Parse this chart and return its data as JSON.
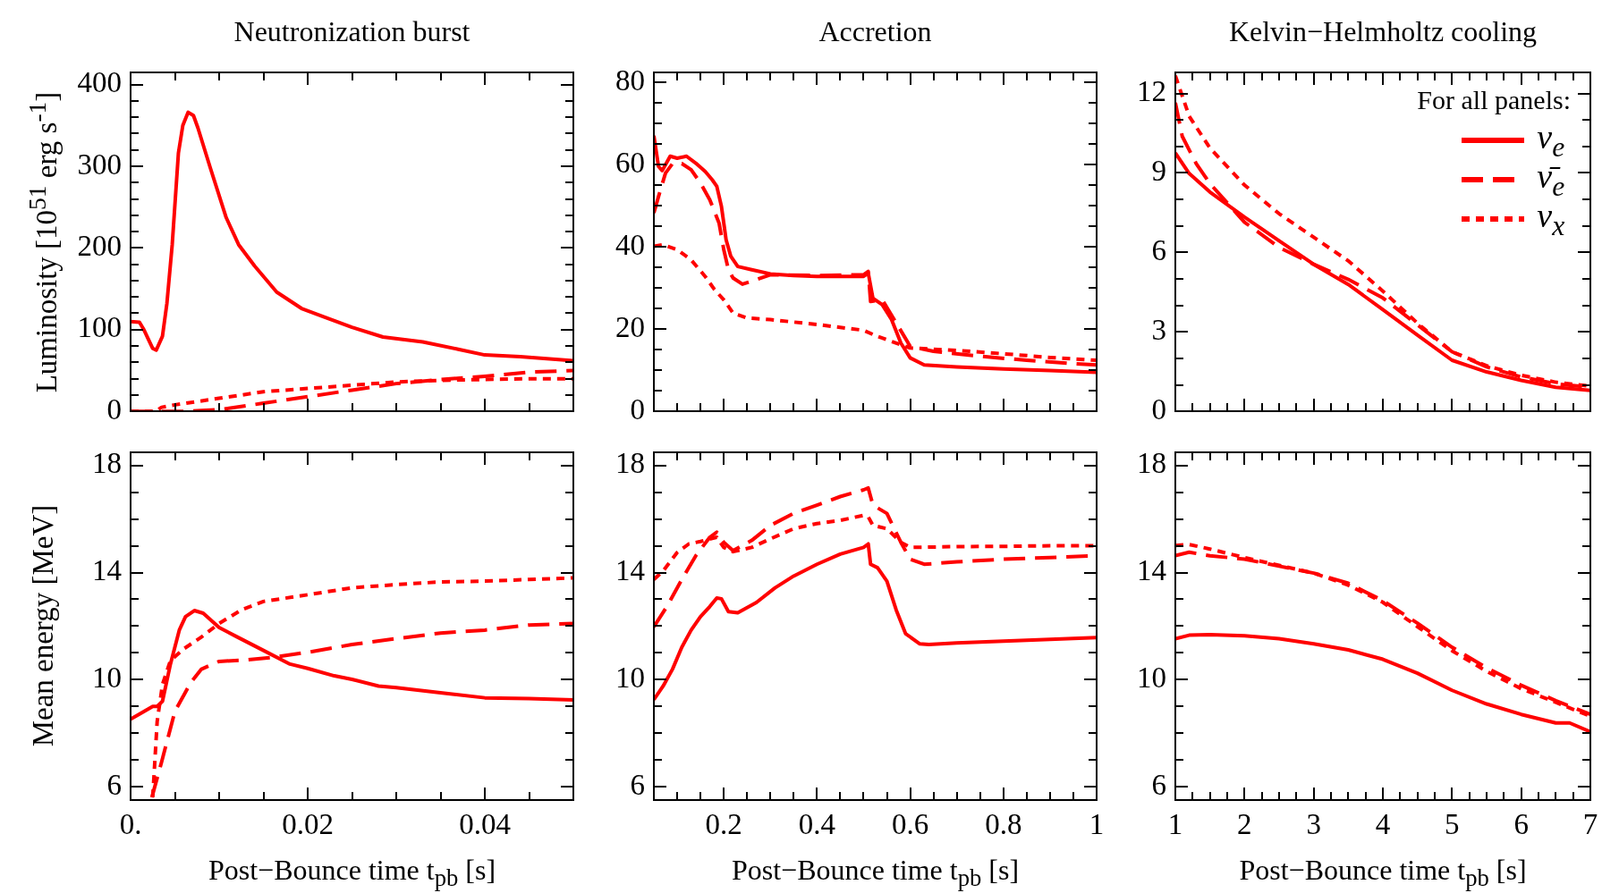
{
  "chart_data": [
    {
      "type": "line",
      "title": "Neutronization burst",
      "ylabel": "Luminosity [10$^{51}$ erg s$^{-1}$]",
      "tick_labels": "y",
      "xlim": [
        0,
        0.05
      ],
      "xticks": [
        0,
        {
          "value": 0.005,
          "label": null
        },
        {
          "value": 0.01,
          "label": null
        },
        {
          "value": 0.015,
          "label": null
        },
        0.02,
        {
          "value": 0.025,
          "label": null
        },
        {
          "value": 0.03,
          "label": null
        },
        {
          "value": 0.035,
          "label": null
        },
        0.04,
        {
          "value": 0.045,
          "label": null
        }
      ],
      "ylim": [
        0,
        415
      ],
      "yticks": [
        0,
        {
          "value": 20,
          "label": null
        },
        {
          "value": 40,
          "label": null
        },
        {
          "value": 60,
          "label": null
        },
        {
          "value": 80,
          "label": null
        },
        100,
        {
          "value": 120,
          "label": null
        },
        {
          "value": 140,
          "label": null
        },
        {
          "value": 160,
          "label": null
        },
        {
          "value": 180,
          "label": null
        },
        200,
        {
          "value": 220,
          "label": null
        },
        {
          "value": 240,
          "label": null
        },
        {
          "value": 260,
          "label": null
        },
        {
          "value": 280,
          "label": null
        },
        300,
        {
          "value": 320,
          "label": null
        },
        {
          "value": 340,
          "label": null
        },
        {
          "value": 360,
          "label": null
        },
        {
          "value": 380,
          "label": null
        },
        400
      ],
      "series": [
        {
          "color": "#ff0000",
          "line_style": "solid",
          "x": [
            0,
            0.001,
            0.0015,
            0.0025,
            0.0029,
            0.0036,
            0.0041,
            0.0047,
            0.0054,
            0.0059,
            0.0065,
            0.0071,
            0.0076,
            0.009,
            0.0108,
            0.0122,
            0.014,
            0.0165,
            0.0193,
            0.022,
            0.025,
            0.0285,
            0.033,
            0.037,
            0.04,
            0.044,
            0.05
          ],
          "values": [
            110,
            109,
            100,
            77,
            75,
            92,
            132,
            204,
            316,
            350,
            366,
            362,
            347,
            298,
            237,
            204,
            178,
            146,
            126,
            115,
            103,
            91,
            85,
            76,
            69,
            67,
            62
          ]
        },
        {
          "color": "#ff0000",
          "line_style": "dashed",
          "x": [
            0,
            0.006,
            0.008,
            0.01,
            0.015,
            0.02,
            0.025,
            0.03,
            0.035,
            0.04,
            0.045,
            0.05
          ],
          "values": [
            0,
            0,
            1,
            2,
            10,
            18,
            26,
            34,
            39,
            43,
            48,
            50
          ]
        },
        {
          "color": "#ff0000",
          "line_style": "dotted",
          "x": [
            0,
            0.0028,
            0.0035,
            0.005,
            0.01,
            0.015,
            0.02,
            0.025,
            0.03,
            0.035,
            0.04,
            0.045,
            0.05
          ],
          "values": [
            0,
            0,
            5,
            8,
            16,
            24,
            28,
            32,
            36,
            38,
            39,
            40,
            40
          ]
        }
      ]
    },
    {
      "type": "line",
      "title": "Accretion",
      "tick_labels": "y",
      "xlim": [
        0.05,
        1
      ],
      "xticks": [
        {
          "value": 0.1,
          "label": null
        },
        {
          "value": 0.15,
          "label": null
        },
        0.2,
        {
          "value": 0.25,
          "label": null
        },
        {
          "value": 0.3,
          "label": null
        },
        {
          "value": 0.35,
          "label": null
        },
        0.4,
        {
          "value": 0.45,
          "label": null
        },
        {
          "value": 0.5,
          "label": null
        },
        {
          "value": 0.55,
          "label": null
        },
        0.6,
        {
          "value": 0.65,
          "label": null
        },
        {
          "value": 0.7,
          "label": null
        },
        {
          "value": 0.75,
          "label": null
        },
        0.8,
        {
          "value": 0.85,
          "label": null
        },
        {
          "value": 0.9,
          "label": null
        },
        {
          "value": 0.95,
          "label": null
        },
        1
      ],
      "ylim": [
        0,
        82.4
      ],
      "yticks": [
        0,
        {
          "value": 5,
          "label": null
        },
        {
          "value": 10,
          "label": null
        },
        {
          "value": 15,
          "label": null
        },
        20,
        {
          "value": 25,
          "label": null
        },
        {
          "value": 30,
          "label": null
        },
        {
          "value": 35,
          "label": null
        },
        40,
        {
          "value": 45,
          "label": null
        },
        {
          "value": 50,
          "label": null
        },
        {
          "value": 55,
          "label": null
        },
        60,
        {
          "value": 65,
          "label": null
        },
        {
          "value": 70,
          "label": null
        },
        {
          "value": 75,
          "label": null
        },
        80
      ],
      "series": [
        {
          "color": "#ff0000",
          "line_style": "solid",
          "x": [
            0.05,
            0.06,
            0.068,
            0.085,
            0.1,
            0.12,
            0.14,
            0.16,
            0.175,
            0.185,
            0.195,
            0.205,
            0.215,
            0.23,
            0.26,
            0.3,
            0.35,
            0.4,
            0.45,
            0.5,
            0.51,
            0.52,
            0.54,
            0.56,
            0.58,
            0.6,
            0.63,
            0.7,
            0.8,
            0.9,
            1.0
          ],
          "values": [
            67,
            59.5,
            58.5,
            62,
            61.5,
            62,
            60.3,
            58.3,
            56.3,
            54.7,
            49.8,
            41.7,
            37.7,
            35.2,
            34.4,
            33.4,
            33,
            32.8,
            32.8,
            32.8,
            33.6,
            27.5,
            25.9,
            22.3,
            16.6,
            13,
            11.3,
            10.8,
            10.3,
            9.9,
            9.5
          ]
        },
        {
          "color": "#ff0000",
          "line_style": "dashed",
          "x": [
            0.05,
            0.06,
            0.075,
            0.09,
            0.11,
            0.13,
            0.15,
            0.17,
            0.19,
            0.2,
            0.21,
            0.22,
            0.24,
            0.27,
            0.3,
            0.4,
            0.5,
            0.51,
            0.515,
            0.54,
            0.57,
            0.6,
            0.65,
            0.75,
            0.85,
            0.95,
            1.0
          ],
          "values": [
            48.2,
            52.2,
            57.9,
            60.2,
            60.2,
            58.7,
            55.5,
            51.4,
            45.7,
            39.3,
            34.4,
            32.4,
            30.9,
            32,
            33.2,
            33,
            33.2,
            34,
            26.7,
            27.1,
            21.5,
            15.8,
            14.6,
            13.4,
            12.4,
            11.6,
            11.3
          ]
        },
        {
          "color": "#ff0000",
          "line_style": "dotted",
          "x": [
            0.05,
            0.07,
            0.1,
            0.13,
            0.16,
            0.18,
            0.2,
            0.22,
            0.25,
            0.3,
            0.4,
            0.5,
            0.53,
            0.6,
            0.7,
            0.8,
            0.9,
            1.0
          ],
          "values": [
            40.1,
            40.5,
            39.3,
            36.8,
            32.8,
            29.6,
            27.1,
            23.9,
            22.7,
            22.3,
            21.1,
            19.7,
            18.2,
            15.4,
            14.8,
            14,
            13.1,
            12.4
          ]
        }
      ]
    },
    {
      "type": "line",
      "title": "Kelvin−Helmholtz cooling",
      "tick_labels": "y",
      "legend": "top right",
      "legend_title": "For all panels:",
      "xlim": [
        1,
        7
      ],
      "xticks": [
        1,
        {
          "value": 1.25,
          "label": null
        },
        {
          "value": 1.5,
          "label": null
        },
        {
          "value": 1.75,
          "label": null
        },
        2,
        {
          "value": 2.25,
          "label": null
        },
        {
          "value": 2.5,
          "label": null
        },
        {
          "value": 2.75,
          "label": null
        },
        3,
        {
          "value": 3.25,
          "label": null
        },
        {
          "value": 3.5,
          "label": null
        },
        {
          "value": 3.75,
          "label": null
        },
        4,
        {
          "value": 4.25,
          "label": null
        },
        {
          "value": 4.5,
          "label": null
        },
        {
          "value": 4.75,
          "label": null
        },
        5,
        {
          "value": 5.25,
          "label": null
        },
        {
          "value": 5.5,
          "label": null
        },
        {
          "value": 5.75,
          "label": null
        },
        6,
        {
          "value": 6.25,
          "label": null
        },
        {
          "value": 6.5,
          "label": null
        },
        {
          "value": 6.75,
          "label": null
        },
        7
      ],
      "ylim": [
        0,
        12.8
      ],
      "yticks": [
        0,
        {
          "value": 1,
          "label": null
        },
        {
          "value": 2,
          "label": null
        },
        3,
        {
          "value": 4,
          "label": null
        },
        {
          "value": 5,
          "label": null
        },
        6,
        {
          "value": 7,
          "label": null
        },
        {
          "value": 8,
          "label": null
        },
        9,
        {
          "value": 10,
          "label": null
        },
        {
          "value": 11,
          "label": null
        },
        12
      ],
      "series": [
        {
          "name": "ν$_{e}$",
          "color": "#ff0000",
          "line_style": "solid",
          "x": [
            1,
            1.2,
            1.5,
            2,
            2.5,
            3,
            3.5,
            4,
            4.5,
            5,
            5.5,
            6,
            6.5,
            7
          ],
          "values": [
            9.75,
            8.98,
            8.28,
            7.33,
            6.44,
            5.55,
            4.79,
            3.84,
            2.88,
            1.93,
            1.49,
            1.17,
            0.91,
            0.79
          ]
        },
        {
          "name": "ν̄$_{e}$",
          "color": "#ff0000",
          "line_style": "dashed",
          "x": [
            1,
            1.1,
            1.3,
            1.5,
            2,
            2.5,
            3,
            3.5,
            4,
            4.5,
            5,
            5.5,
            6,
            6.5,
            7
          ],
          "values": [
            11.65,
            10.38,
            9.36,
            8.6,
            7.14,
            6.19,
            5.55,
            4.98,
            4.28,
            3.27,
            2.25,
            1.68,
            1.3,
            1.04,
            0.91
          ]
        },
        {
          "name": "ν$_{x}$",
          "color": "#ff0000",
          "line_style": "dotted",
          "x": [
            1,
            1.2,
            1.5,
            2,
            2.5,
            3,
            3.5,
            4,
            4.5,
            5,
            5.5,
            6,
            6.5,
            7
          ],
          "values": [
            12.67,
            11.14,
            9.94,
            8.54,
            7.46,
            6.57,
            5.68,
            4.54,
            3.33,
            2.25,
            1.72,
            1.36,
            1.1,
            0.95
          ]
        }
      ]
    },
    {
      "type": "line",
      "ylabel": "Mean energy [MeV]",
      "xlabel": "Post−Bounce time t$_{pb}$ [s]",
      "xlim": [
        0,
        0.05
      ],
      "xticks": [
        {
          "value": 0,
          "label": "0."
        },
        {
          "value": 0.005,
          "label": null
        },
        {
          "value": 0.01,
          "label": null
        },
        {
          "value": 0.015,
          "label": null
        },
        0.02,
        {
          "value": 0.025,
          "label": null
        },
        {
          "value": 0.03,
          "label": null
        },
        {
          "value": 0.035,
          "label": null
        },
        0.04,
        {
          "value": 0.045,
          "label": null
        }
      ],
      "ylim": [
        5.5,
        18.5
      ],
      "yticks": [
        6,
        {
          "value": 7,
          "label": null
        },
        {
          "value": 8,
          "label": null
        },
        {
          "value": 9,
          "label": null
        },
        10,
        {
          "value": 11,
          "label": null
        },
        {
          "value": 12,
          "label": null
        },
        {
          "value": 13,
          "label": null
        },
        14,
        {
          "value": 15,
          "label": null
        },
        {
          "value": 16,
          "label": null
        },
        {
          "value": 17,
          "label": null
        },
        18
      ],
      "series": [
        {
          "color": "#ff0000",
          "line_style": "solid",
          "x": [
            0,
            0.0015,
            0.0025,
            0.003,
            0.0036,
            0.0045,
            0.0055,
            0.0062,
            0.0072,
            0.0082,
            0.01,
            0.012,
            0.015,
            0.018,
            0.02,
            0.023,
            0.025,
            0.028,
            0.03,
            0.035,
            0.04,
            0.045,
            0.05
          ],
          "values": [
            8.52,
            8.81,
            9,
            9,
            9.19,
            10.58,
            11.85,
            12.35,
            12.58,
            12.48,
            11.95,
            11.6,
            11.09,
            10.58,
            10.42,
            10.14,
            10.01,
            9.76,
            9.7,
            9.51,
            9.32,
            9.29,
            9.24
          ]
        },
        {
          "color": "#ff0000",
          "line_style": "dashed",
          "x": [
            0.0024,
            0.0035,
            0.005,
            0.0068,
            0.008,
            0.01,
            0.013,
            0.016,
            0.02,
            0.025,
            0.03,
            0.035,
            0.04,
            0.045,
            0.05
          ],
          "values": [
            5.6,
            6.92,
            8.81,
            9.89,
            10.39,
            10.68,
            10.73,
            10.83,
            11.02,
            11.31,
            11.53,
            11.74,
            11.85,
            12.04,
            12.1
          ]
        },
        {
          "color": "#ff0000",
          "line_style": "dotted",
          "x": [
            0.0025,
            0.003,
            0.0036,
            0.0045,
            0.006,
            0.008,
            0.01,
            0.0125,
            0.015,
            0.02,
            0.025,
            0.03,
            0.035,
            0.04,
            0.045,
            0.05
          ],
          "values": [
            5.6,
            8.43,
            9.82,
            10.71,
            11.15,
            11.59,
            12.1,
            12.6,
            12.92,
            13.17,
            13.43,
            13.55,
            13.65,
            13.68,
            13.74,
            13.8
          ]
        }
      ]
    },
    {
      "type": "line",
      "xlabel": "Post−Bounce time t$_{pb}$ [s]",
      "xlim": [
        0.05,
        1
      ],
      "xticks": [
        {
          "value": 0.1,
          "label": null
        },
        {
          "value": 0.15,
          "label": null
        },
        0.2,
        {
          "value": 0.25,
          "label": null
        },
        {
          "value": 0.3,
          "label": null
        },
        {
          "value": 0.35,
          "label": null
        },
        0.4,
        {
          "value": 0.45,
          "label": null
        },
        {
          "value": 0.5,
          "label": null
        },
        {
          "value": 0.55,
          "label": null
        },
        0.6,
        {
          "value": 0.65,
          "label": null
        },
        {
          "value": 0.7,
          "label": null
        },
        {
          "value": 0.75,
          "label": null
        },
        0.8,
        {
          "value": 0.85,
          "label": null
        },
        {
          "value": 0.9,
          "label": null
        },
        {
          "value": 0.95,
          "label": null
        },
        1
      ],
      "ylim": [
        5.5,
        18.5
      ],
      "yticks": [
        6,
        {
          "value": 7,
          "label": null
        },
        {
          "value": 8,
          "label": null
        },
        {
          "value": 9,
          "label": null
        },
        10,
        {
          "value": 11,
          "label": null
        },
        {
          "value": 12,
          "label": null
        },
        {
          "value": 13,
          "label": null
        },
        14,
        {
          "value": 15,
          "label": null
        },
        {
          "value": 16,
          "label": null
        },
        {
          "value": 17,
          "label": null
        },
        18
      ],
      "series": [
        {
          "color": "#ff0000",
          "line_style": "solid",
          "x": [
            0.05,
            0.07,
            0.09,
            0.11,
            0.13,
            0.15,
            0.17,
            0.185,
            0.195,
            0.21,
            0.23,
            0.27,
            0.31,
            0.35,
            0.4,
            0.45,
            0.5,
            0.51,
            0.515,
            0.53,
            0.55,
            0.57,
            0.59,
            0.62,
            0.64,
            0.7,
            0.8,
            0.9,
            1.0
          ],
          "values": [
            9.25,
            9.76,
            10.39,
            11.21,
            11.85,
            12.35,
            12.73,
            13.05,
            13.02,
            12.54,
            12.5,
            12.88,
            13.43,
            13.87,
            14.31,
            14.69,
            14.94,
            15.07,
            14.31,
            14.18,
            13.68,
            12.6,
            11.72,
            11.34,
            11.31,
            11.37,
            11.44,
            11.5,
            11.57
          ]
        },
        {
          "color": "#ff0000",
          "line_style": "dashed",
          "x": [
            0.05,
            0.08,
            0.11,
            0.14,
            0.17,
            0.185,
            0.2,
            0.22,
            0.26,
            0.3,
            0.35,
            0.4,
            0.45,
            0.5,
            0.51,
            0.52,
            0.55,
            0.58,
            0.6,
            0.63,
            0.7,
            0.8,
            0.9,
            1.0
          ],
          "values": [
            11.97,
            12.79,
            13.74,
            14.63,
            15.32,
            15.51,
            15.13,
            14.82,
            15.2,
            15.76,
            16.21,
            16.52,
            16.84,
            17.09,
            17.16,
            16.52,
            16.21,
            15.13,
            14.5,
            14.31,
            14.4,
            14.5,
            14.56,
            14.63
          ]
        },
        {
          "color": "#ff0000",
          "line_style": "dotted",
          "x": [
            0.05,
            0.07,
            0.1,
            0.125,
            0.15,
            0.185,
            0.2,
            0.22,
            0.26,
            0.3,
            0.35,
            0.4,
            0.45,
            0.5,
            0.51,
            0.52,
            0.55,
            0.58,
            0.6,
            0.7,
            0.8,
            0.9,
            1.0
          ],
          "values": [
            13.74,
            14.06,
            14.75,
            15.07,
            15.16,
            15.32,
            14.94,
            14.78,
            14.94,
            15.26,
            15.64,
            15.83,
            15.95,
            16.14,
            16.08,
            15.76,
            15.64,
            15.13,
            14.94,
            14.97,
            14.98,
            15,
            15
          ]
        }
      ]
    },
    {
      "type": "line",
      "xlabel": "Post−Bounce time t$_{pb}$ [s]",
      "xlim": [
        1,
        7
      ],
      "xticks": [
        1,
        {
          "value": 1.25,
          "label": null
        },
        {
          "value": 1.5,
          "label": null
        },
        {
          "value": 1.75,
          "label": null
        },
        2,
        {
          "value": 2.25,
          "label": null
        },
        {
          "value": 2.5,
          "label": null
        },
        {
          "value": 2.75,
          "label": null
        },
        3,
        {
          "value": 3.25,
          "label": null
        },
        {
          "value": 3.5,
          "label": null
        },
        {
          "value": 3.75,
          "label": null
        },
        4,
        {
          "value": 4.25,
          "label": null
        },
        {
          "value": 4.5,
          "label": null
        },
        {
          "value": 4.75,
          "label": null
        },
        5,
        {
          "value": 5.25,
          "label": null
        },
        {
          "value": 5.5,
          "label": null
        },
        {
          "value": 5.75,
          "label": null
        },
        6,
        {
          "value": 6.25,
          "label": null
        },
        {
          "value": 6.5,
          "label": null
        },
        {
          "value": 6.75,
          "label": null
        },
        7
      ],
      "ylim": [
        5.5,
        18.5
      ],
      "yticks": [
        6,
        {
          "value": 7,
          "label": null
        },
        {
          "value": 8,
          "label": null
        },
        {
          "value": 9,
          "label": null
        },
        10,
        {
          "value": 11,
          "label": null
        },
        {
          "value": 12,
          "label": null
        },
        {
          "value": 13,
          "label": null
        },
        14,
        {
          "value": 15,
          "label": null
        },
        {
          "value": 16,
          "label": null
        },
        {
          "value": 17,
          "label": null
        },
        18
      ],
      "series": [
        {
          "color": "#ff0000",
          "line_style": "solid",
          "x": [
            1,
            1.2,
            1.5,
            2,
            2.5,
            3,
            3.5,
            4,
            4.5,
            5,
            5.5,
            6,
            6.5,
            6.7,
            7
          ],
          "values": [
            11.53,
            11.66,
            11.68,
            11.64,
            11.53,
            11.34,
            11.11,
            10.76,
            10.24,
            9.6,
            9.09,
            8.7,
            8.38,
            8.38,
            8.05
          ]
        },
        {
          "color": "#ff0000",
          "line_style": "dashed",
          "x": [
            1,
            1.2,
            1.5,
            2,
            2.5,
            3,
            3.5,
            4,
            4.5,
            5,
            5.5,
            6,
            6.5,
            7
          ],
          "values": [
            14.63,
            14.76,
            14.63,
            14.5,
            14.24,
            13.98,
            13.6,
            12.95,
            12.11,
            11.21,
            10.44,
            9.79,
            9.21,
            8.7
          ]
        },
        {
          "color": "#ff0000",
          "line_style": "dotted",
          "x": [
            1,
            1.2,
            1.5,
            2,
            2.5,
            3,
            3.5,
            4,
            4.5,
            5,
            5.5,
            6,
            6.5,
            7
          ],
          "values": [
            15.01,
            15.05,
            14.88,
            14.56,
            14.27,
            13.98,
            13.53,
            12.89,
            11.98,
            11.08,
            10.31,
            9.66,
            9.15,
            8.63
          ]
        }
      ]
    }
  ]
}
